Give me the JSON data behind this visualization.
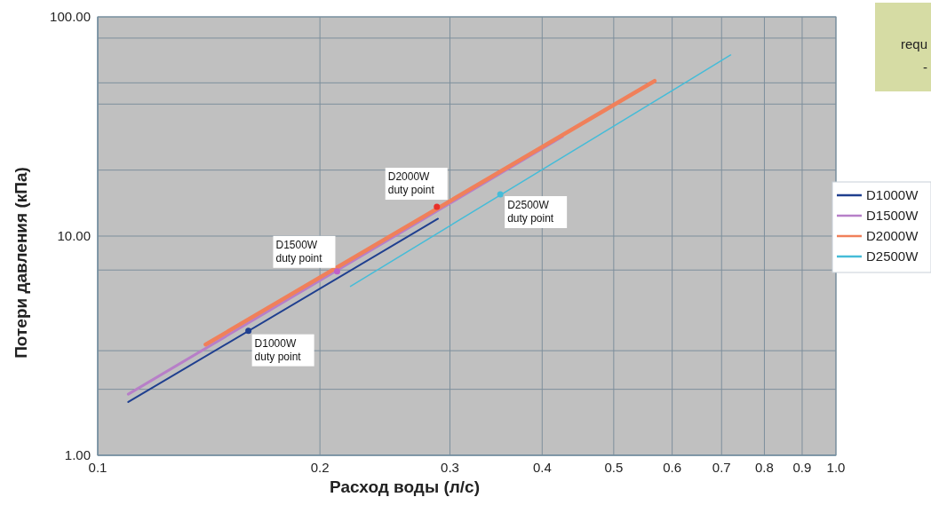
{
  "chart_data": {
    "type": "line",
    "xlabel": "Расход воды (л/с)",
    "ylabel": "Потери давления (кПа)",
    "log": "xy",
    "xlim": [
      0.1,
      1
    ],
    "ylim": [
      1,
      100
    ],
    "xticks": [
      0.1,
      0.2,
      0.3,
      0.4,
      0.5,
      0.6,
      0.7,
      0.8,
      0.9,
      {
        "value": 1,
        "label": "1.0"
      }
    ],
    "yticks": [
      {
        "value": 1,
        "label": "1.00"
      },
      {
        "value": 2,
        "label": null
      },
      {
        "value": 3,
        "label": null
      },
      {
        "value": 7,
        "label": null
      },
      {
        "value": 10,
        "label": "10.00"
      },
      {
        "value": 20,
        "label": null
      },
      {
        "value": 40,
        "label": null
      },
      {
        "value": 50,
        "label": null
      },
      {
        "value": 80,
        "label": null
      },
      {
        "value": 100,
        "label": "100.00"
      }
    ],
    "grid": true,
    "legend": "right",
    "marker": "none",
    "series": [
      {
        "name": "D1000W",
        "color": "#1f3f8f",
        "x": [
          0.11,
          0.289
        ],
        "values": [
          1.75,
          12.0
        ]
      },
      {
        "name": "D1500W",
        "color": "#b77fc8",
        "x": [
          0.11,
          0.426
        ],
        "values": [
          1.9,
          28.4
        ]
      },
      {
        "name": "D2000W",
        "color": "#f0805a",
        "x": [
          0.14,
          0.568
        ],
        "values": [
          3.2,
          51
        ]
      },
      {
        "name": "D2500W",
        "color": "#45bcd8",
        "x": [
          0.22,
          0.72
        ],
        "values": [
          5.9,
          67
        ]
      },
      {
        "type": "scatter",
        "marker": "circle",
        "color": "#1f3f8f",
        "x": [
          0.16
        ],
        "values": [
          3.7
        ]
      },
      {
        "type": "scatter",
        "marker": "circle",
        "color": "#c060c8",
        "x": [
          0.211
        ],
        "values": [
          6.9
        ]
      },
      {
        "type": "scatter",
        "marker": "circle",
        "color": "#e8302a",
        "x": [
          0.288
        ],
        "values": [
          13.6
        ]
      },
      {
        "type": "scatter",
        "marker": "circle",
        "color": "#45bcd8",
        "x": [
          0.351
        ],
        "values": [
          15.5
        ]
      }
    ],
    "annotations": [
      {
        "text": "D1000W\nduty point",
        "x": 0.16,
        "y": 3.7
      },
      {
        "text": "D1500W\nduty point",
        "x": 0.211,
        "y": 6.9
      },
      {
        "text": "D2000W\nduty point",
        "x": 0.288,
        "y": 13.6
      },
      {
        "text": "D2500W\nduty point",
        "x": 0.351,
        "y": 15.5
      },
      "requ\n-"
    ]
  }
}
